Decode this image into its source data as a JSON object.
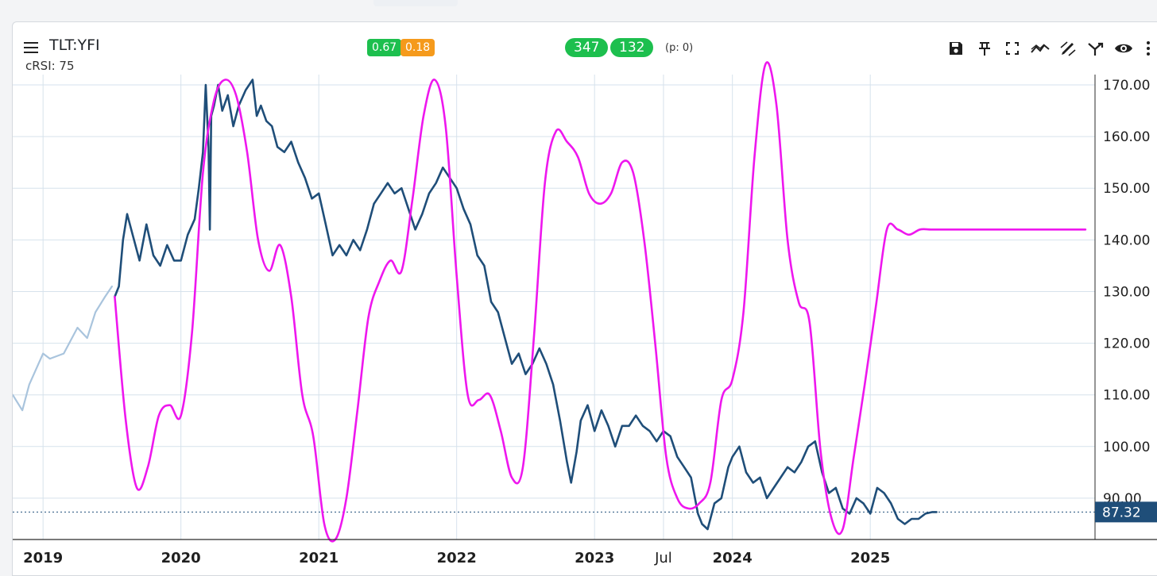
{
  "header": {
    "symbol": "TLT:YFI",
    "indicator_label": "cRSI: 75",
    "badge_a": "0.67",
    "badge_b": "0.18",
    "count_a": "347",
    "count_b": "132",
    "p_text": "(p: 0)"
  },
  "toolbar": {
    "icons": [
      "save-icon",
      "pin-icon",
      "fullscreen-icon",
      "trend-icon",
      "draw-icon",
      "fork-icon",
      "eye-icon",
      "more-icon"
    ]
  },
  "colors": {
    "price_line": "#1f4e79",
    "price_line_history": "#a9c4dd",
    "crsi_line": "#ee17ee",
    "badge_green": "#1dbf4e",
    "badge_orange": "#f59a1c",
    "price_tag": "#1f4e79",
    "grid": "#d6e2ec"
  },
  "chart_data": {
    "type": "line",
    "y_axis_position": "right",
    "y_ticks": [
      "170.00",
      "160.00",
      "150.00",
      "140.00",
      "130.00",
      "120.00",
      "110.00",
      "100.00",
      "90.00"
    ],
    "ylim": [
      82,
      172
    ],
    "x_ticks": [
      {
        "t": 2019.0,
        "label": "2019"
      },
      {
        "t": 2020.0,
        "label": "2020"
      },
      {
        "t": 2021.0,
        "label": "2021"
      },
      {
        "t": 2022.0,
        "label": "2022"
      },
      {
        "t": 2023.0,
        "label": "2023"
      },
      {
        "t": 2023.5,
        "label": "Jul"
      },
      {
        "t": 2024.0,
        "label": "2024"
      },
      {
        "t": 2025.0,
        "label": "2025"
      }
    ],
    "xlim": [
      2018.78,
      2026.63
    ],
    "last_price": "87.32",
    "last_price_value": 87.32,
    "grid": true,
    "series": [
      {
        "role": "price-history",
        "x": [
          2018.78,
          2018.85,
          2018.9,
          2019.0,
          2019.05,
          2019.15,
          2019.25,
          2019.32,
          2019.38,
          2019.45,
          2019.5
        ],
        "y": [
          110,
          107,
          112,
          118,
          117,
          118,
          123,
          121,
          126,
          129,
          131
        ]
      },
      {
        "role": "price",
        "x": [
          2019.52,
          2019.55,
          2019.58,
          2019.61,
          2019.65,
          2019.7,
          2019.75,
          2019.8,
          2019.85,
          2019.9,
          2019.95,
          2020.0,
          2020.05,
          2020.1,
          2020.13,
          2020.16,
          2020.18,
          2020.2,
          2020.21,
          2020.22,
          2020.24,
          2020.27,
          2020.3,
          2020.34,
          2020.38,
          2020.42,
          2020.47,
          2020.52,
          2020.55,
          2020.58,
          2020.62,
          2020.66,
          2020.7,
          2020.75,
          2020.8,
          2020.85,
          2020.9,
          2020.95,
          2021.0,
          2021.05,
          2021.1,
          2021.15,
          2021.2,
          2021.25,
          2021.3,
          2021.35,
          2021.4,
          2021.45,
          2021.5,
          2021.55,
          2021.6,
          2021.65,
          2021.7,
          2021.75,
          2021.8,
          2021.85,
          2021.9,
          2021.95,
          2022.0,
          2022.05,
          2022.1,
          2022.15,
          2022.2,
          2022.25,
          2022.3,
          2022.35,
          2022.4,
          2022.45,
          2022.5,
          2022.55,
          2022.6,
          2022.65,
          2022.7,
          2022.75,
          2022.8,
          2022.83,
          2022.87,
          2022.9,
          2022.95,
          2023.0,
          2023.05,
          2023.1,
          2023.15,
          2023.2,
          2023.25,
          2023.3,
          2023.35,
          2023.4,
          2023.45,
          2023.5,
          2023.55,
          2023.6,
          2023.65,
          2023.7,
          2023.75,
          2023.78,
          2023.82,
          2023.87,
          2023.92,
          2023.97,
          2024.0,
          2024.05,
          2024.1,
          2024.15,
          2024.2,
          2024.25,
          2024.3,
          2024.35,
          2024.4,
          2024.45,
          2024.5,
          2024.55,
          2024.6,
          2024.65,
          2024.7,
          2024.75,
          2024.8,
          2024.85,
          2024.9,
          2024.95,
          2025.0,
          2025.05,
          2025.1,
          2025.15,
          2025.2,
          2025.25,
          2025.3,
          2025.35,
          2025.4,
          2025.45,
          2025.48
        ],
        "y": [
          129,
          131,
          140,
          145,
          141,
          136,
          143,
          137,
          135,
          139,
          136,
          136,
          141,
          144,
          150,
          157,
          170,
          158,
          142,
          164,
          166,
          170,
          165,
          168,
          162,
          166,
          169,
          171,
          164,
          166,
          163,
          162,
          158,
          157,
          159,
          155,
          152,
          148,
          149,
          143,
          137,
          139,
          137,
          140,
          138,
          142,
          147,
          149,
          151,
          149,
          150,
          146,
          142,
          145,
          149,
          151,
          154,
          152,
          150,
          146,
          143,
          137,
          135,
          128,
          126,
          121,
          116,
          118,
          114,
          116,
          119,
          116,
          112,
          105,
          97,
          93,
          99,
          105,
          108,
          103,
          107,
          104,
          100,
          104,
          104,
          106,
          104,
          103,
          101,
          103,
          102,
          98,
          96,
          94,
          87,
          85,
          84,
          89,
          90,
          96,
          98,
          100,
          95,
          93,
          94,
          90,
          92,
          94,
          96,
          95,
          97,
          100,
          101,
          95,
          91,
          92,
          88,
          87,
          90,
          89,
          87,
          92,
          91,
          89,
          86,
          85,
          86,
          86,
          87,
          87.32,
          87.32
        ]
      },
      {
        "role": "cRSI",
        "x": [
          2019.52,
          2019.6,
          2019.68,
          2019.76,
          2019.84,
          2019.92,
          2020.0,
          2020.08,
          2020.16,
          2020.24,
          2020.32,
          2020.4,
          2020.48,
          2020.56,
          2020.64,
          2020.72,
          2020.8,
          2020.88,
          2020.96,
          2021.04,
          2021.12,
          2021.2,
          2021.28,
          2021.36,
          2021.44,
          2021.52,
          2021.6,
          2021.68,
          2021.76,
          2021.84,
          2021.92,
          2022.0,
          2022.08,
          2022.16,
          2022.24,
          2022.32,
          2022.4,
          2022.48,
          2022.56,
          2022.64,
          2022.72,
          2022.8,
          2022.88,
          2022.96,
          2023.04,
          2023.12,
          2023.2,
          2023.28,
          2023.36,
          2023.44,
          2023.52,
          2023.6,
          2023.68,
          2023.76,
          2023.84,
          2023.92,
          2024.0,
          2024.08,
          2024.16,
          2024.24,
          2024.32,
          2024.4,
          2024.48,
          2024.56,
          2024.64,
          2024.72,
          2024.8,
          2024.88,
          2024.96,
          2025.04,
          2025.12,
          2025.2,
          2025.28,
          2025.36,
          2025.44,
          2025.52,
          2025.6,
          2025.68,
          2025.76,
          2025.84,
          2025.92,
          2026.0,
          2026.08,
          2026.16,
          2026.24,
          2026.32,
          2026.4,
          2026.48,
          2026.56
        ],
        "y": [
          129,
          105,
          92,
          96,
          106,
          108,
          106,
          122,
          153,
          167,
          171,
          168,
          157,
          140,
          134,
          139,
          129,
          110,
          102,
          85,
          82,
          90,
          107,
          125,
          132,
          136,
          134,
          148,
          164,
          171,
          162,
          133,
          110,
          109,
          110,
          103,
          94,
          96,
          121,
          151,
          161,
          159,
          156,
          149,
          147,
          149,
          155,
          153,
          140,
          120,
          98,
          90,
          88,
          89,
          93,
          109,
          113,
          126,
          156,
          174,
          166,
          140,
          128,
          124,
          99,
          86,
          84,
          98,
          112,
          127,
          142,
          142,
          141,
          142,
          142,
          142,
          142,
          142,
          142,
          142,
          142,
          142,
          142,
          142,
          142,
          142,
          142,
          142,
          142
        ]
      }
    ]
  }
}
